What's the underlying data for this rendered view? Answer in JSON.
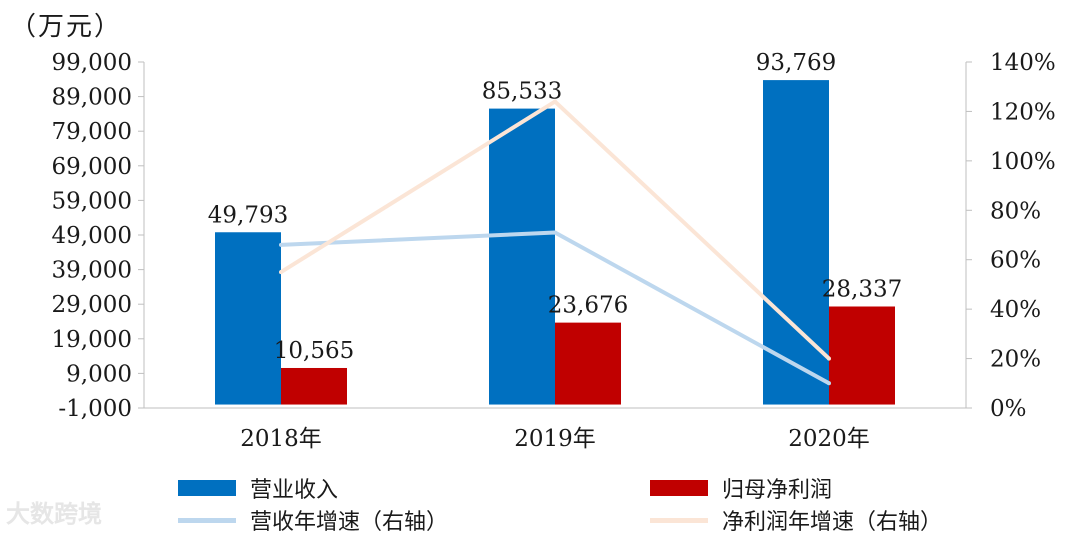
{
  "unit_label": "（万元）",
  "watermark": "大数跨境",
  "colors": {
    "revenue": "#0070C0",
    "net_profit": "#C00000",
    "revenue_growth": "#BDD7EE",
    "profit_growth": "#FBE5D6"
  },
  "chart_data": {
    "type": "bar",
    "categories": [
      "2018年",
      "2019年",
      "2020年"
    ],
    "left_axis": {
      "ylim": [
        -1000,
        99000
      ],
      "ticks": [
        -1000,
        9000,
        19000,
        29000,
        39000,
        49000,
        59000,
        69000,
        79000,
        89000,
        99000
      ],
      "tick_labels": [
        "-1,000",
        "9,000",
        "19,000",
        "29,000",
        "39,000",
        "49,000",
        "59,000",
        "69,000",
        "79,000",
        "89,000",
        "99,000"
      ]
    },
    "right_axis": {
      "ylim": [
        0,
        140
      ],
      "ticks": [
        0,
        20,
        40,
        60,
        80,
        100,
        120,
        140
      ],
      "tick_labels": [
        "0%",
        "20%",
        "40%",
        "60%",
        "80%",
        "100%",
        "120%",
        "140%"
      ]
    },
    "bar_series": [
      {
        "name": "营业收入",
        "values": [
          49793,
          85533,
          93769
        ],
        "labels": [
          "49,793",
          "85,533",
          "93,769"
        ]
      },
      {
        "name": "归母净利润",
        "values": [
          10565,
          23676,
          28337
        ],
        "labels": [
          "10,565",
          "23,676",
          "28,337"
        ]
      }
    ],
    "line_series": [
      {
        "name": "营收年增速（右轴）",
        "values": [
          66,
          71,
          10
        ]
      },
      {
        "name": "净利润年增速（右轴）",
        "values": [
          55,
          124,
          20
        ]
      }
    ],
    "grid": false,
    "legend_position": "bottom"
  }
}
